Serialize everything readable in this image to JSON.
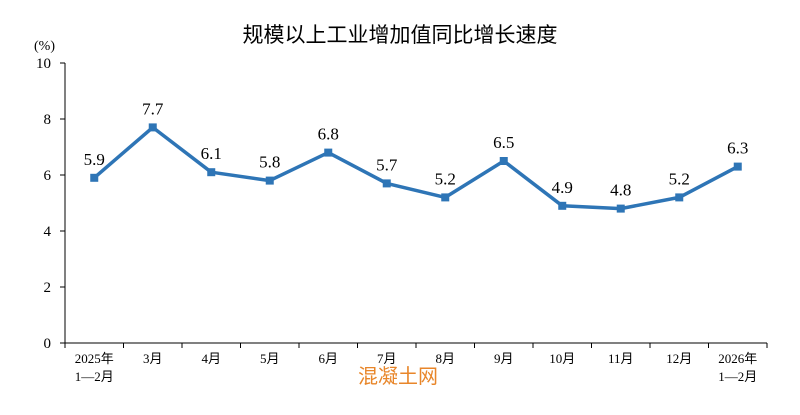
{
  "chart_data": {
    "type": "line",
    "title": "规模以上工业增加值同比增长速度",
    "ylabel": "(%)",
    "ylim": [
      0,
      10
    ],
    "yticks": [
      "0",
      "2",
      "4",
      "6",
      "8",
      "10"
    ],
    "categories": [
      [
        "2025年",
        "1—2月"
      ],
      [
        "3月"
      ],
      [
        "4月"
      ],
      [
        "5月"
      ],
      [
        "6月"
      ],
      [
        "7月"
      ],
      [
        "8月"
      ],
      [
        "9月"
      ],
      [
        "10月"
      ],
      [
        "11月"
      ],
      [
        "12月"
      ],
      [
        "2026年",
        "1—2月"
      ]
    ],
    "series": [
      {
        "values": [
          5.9,
          7.7,
          6.1,
          5.8,
          6.8,
          5.7,
          5.2,
          6.5,
          4.9,
          4.8,
          5.2,
          6.3
        ],
        "labels": [
          "5.9",
          "7.7",
          "6.1",
          "5.8",
          "6.8",
          "5.7",
          "5.2",
          "6.5",
          "4.9",
          "4.8",
          "5.2",
          "6.3"
        ],
        "color": "#2e75b6"
      }
    ],
    "grid": false,
    "legend": "none"
  },
  "watermark": "混凝土网",
  "colors": {
    "line": "#2e75b6",
    "axis": "#000000",
    "watermark": "#e8862a"
  }
}
